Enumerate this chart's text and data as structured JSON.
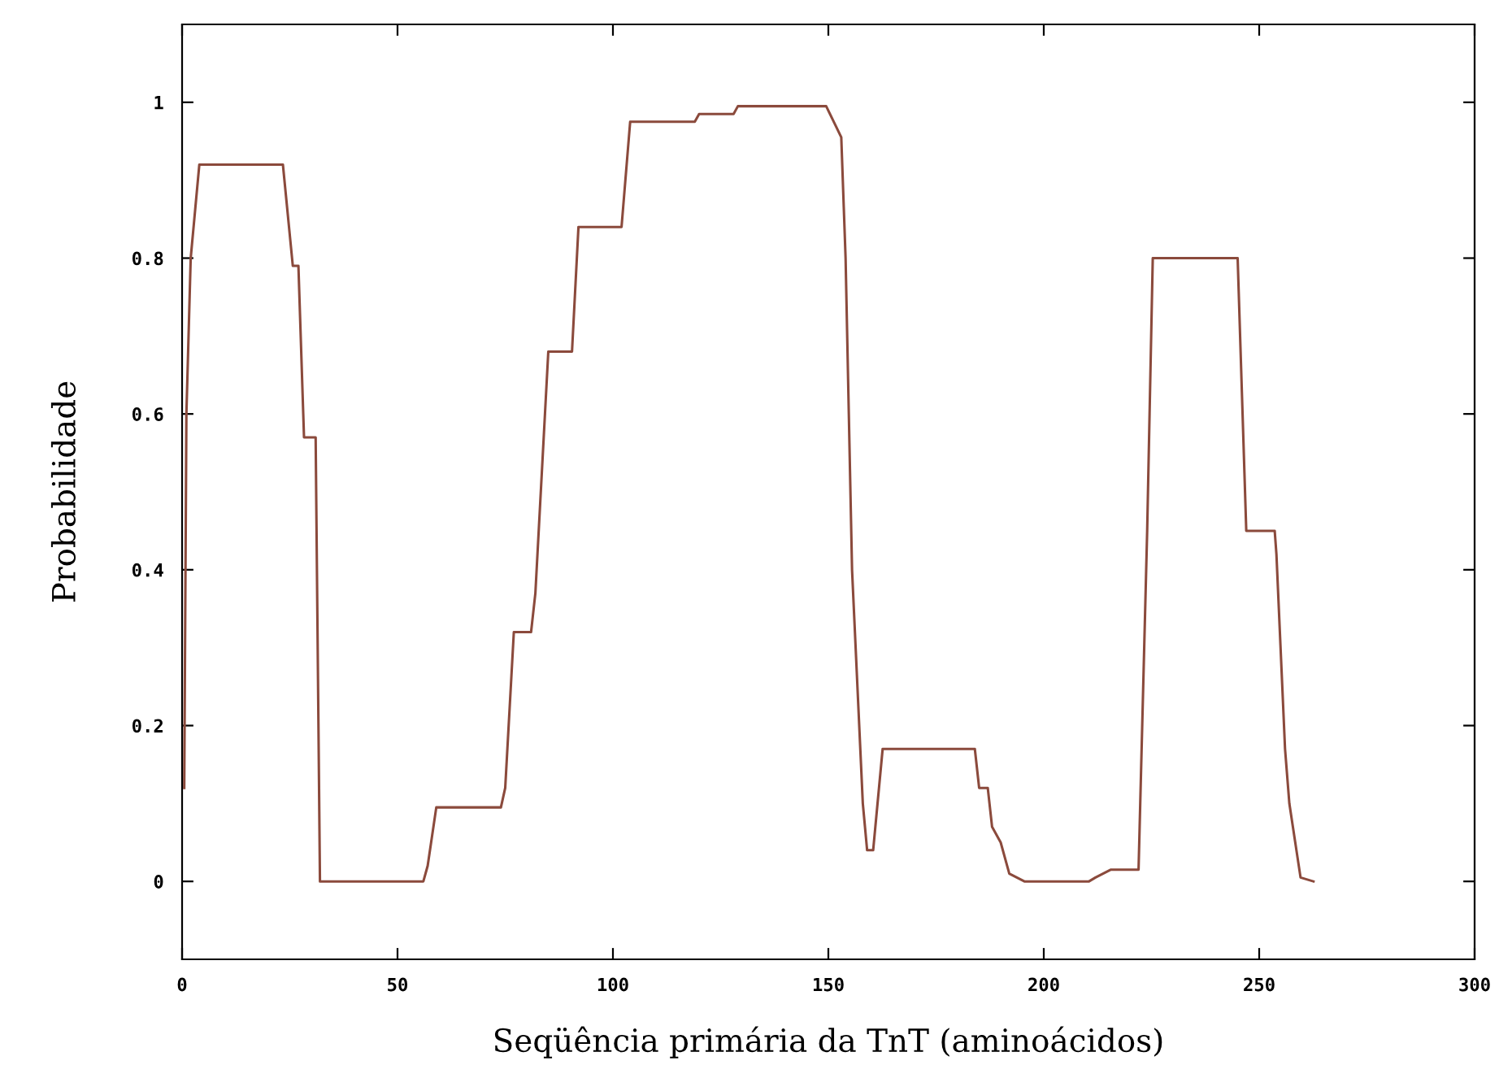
{
  "chart_data": {
    "type": "line",
    "xlabel": "Seqüência primária da TnT (aminoácidos)",
    "ylabel": "Probabilidade",
    "x": [
      0.5,
      1,
      2,
      4,
      23.4,
      25.7,
      27,
      28.3,
      31,
      32,
      56,
      57,
      59,
      74,
      75,
      77,
      81,
      82,
      85,
      90.5,
      92,
      102,
      104,
      119,
      120,
      128,
      129,
      149.5,
      151.7,
      153,
      154,
      155.5,
      158,
      159,
      160.4,
      162.6,
      184,
      185,
      187,
      188,
      190,
      192,
      195.5,
      210.5,
      212,
      215.5,
      222,
      224,
      225.3,
      245,
      247,
      253.6,
      254,
      256,
      257,
      259.6,
      262.6
    ],
    "series": [
      {
        "color": "#8b4a3c",
        "values": [
          0.12,
          0.6,
          0.8,
          0.92,
          0.92,
          0.79,
          0.79,
          0.57,
          0.57,
          0,
          0,
          0.02,
          0.095,
          0.095,
          0.12,
          0.32,
          0.32,
          0.37,
          0.68,
          0.68,
          0.84,
          0.84,
          0.975,
          0.975,
          0.985,
          0.985,
          0.995,
          0.995,
          0.97,
          0.955,
          0.8,
          0.4,
          0.1,
          0.04,
          0.04,
          0.17,
          0.17,
          0.12,
          0.12,
          0.07,
          0.05,
          0.01,
          0,
          0,
          0.005,
          0.015,
          0.015,
          0.45,
          0.8,
          0.8,
          0.45,
          0.45,
          0.42,
          0.17,
          0.1,
          0.005,
          0
        ]
      }
    ],
    "xlim": [
      0,
      300
    ],
    "xticks": [
      0,
      50,
      100,
      150,
      200,
      250,
      300
    ],
    "ylim": [
      -0.1,
      1.1
    ],
    "yticks": [
      0,
      0.2,
      0.4,
      0.6,
      0.8,
      1
    ],
    "grid": false,
    "legend": false,
    "marker": "none",
    "line_style": "solid"
  }
}
